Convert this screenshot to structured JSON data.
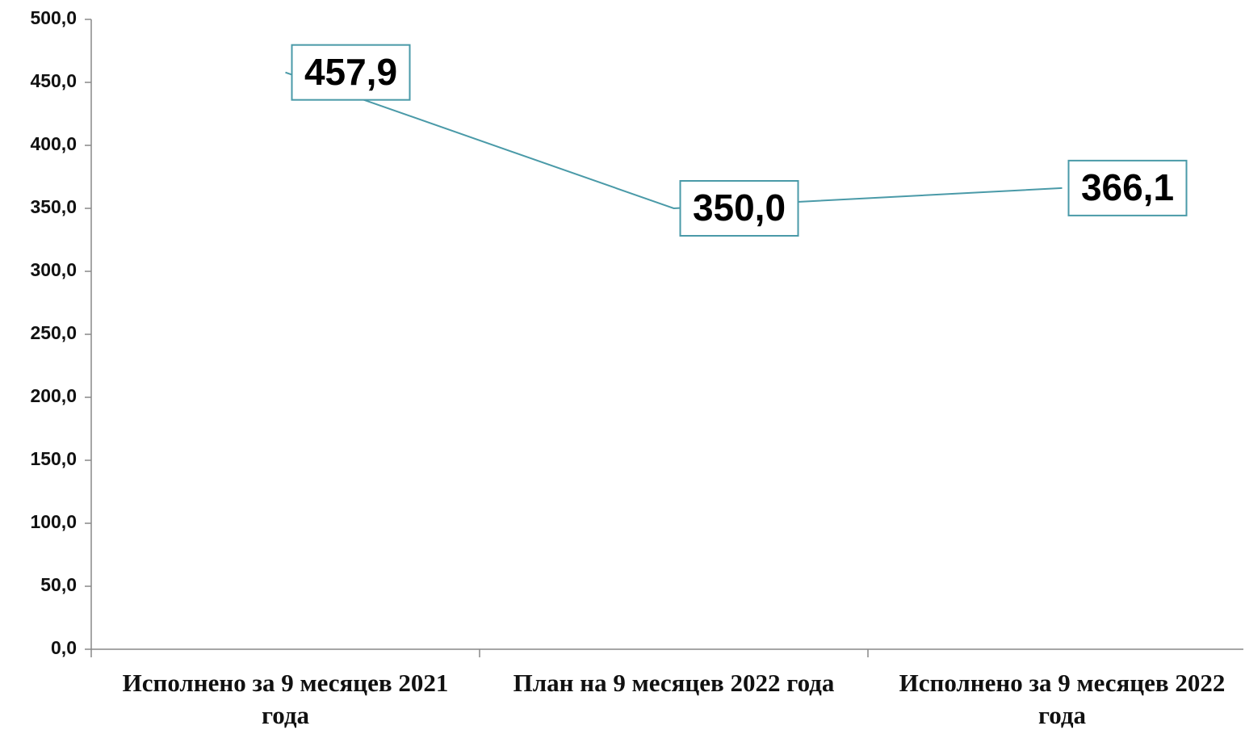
{
  "chart_data": {
    "type": "line",
    "categories": [
      "Исполнено за 9 месяцев 2021 года",
      "План на 9 месяцев 2022 года",
      "Исполнено за 9 месяцев 2022 года"
    ],
    "values": [
      457.9,
      350.0,
      366.1
    ],
    "value_labels": [
      "457,9",
      "350,0",
      "366,1"
    ],
    "color": "#4a9aa8",
    "ylim": [
      0,
      500
    ],
    "yticks": [
      {
        "value": 0,
        "label": "0,0"
      },
      {
        "value": 50,
        "label": "50,0"
      },
      {
        "value": 100,
        "label": "100,0"
      },
      {
        "value": 150,
        "label": "150,0"
      },
      {
        "value": 200,
        "label": "200,0"
      },
      {
        "value": 250,
        "label": "250,0"
      },
      {
        "value": 300,
        "label": "300,0"
      },
      {
        "value": 350,
        "label": "350,0"
      },
      {
        "value": 400,
        "label": "400,0"
      },
      {
        "value": 450,
        "label": "450,0"
      },
      {
        "value": 500,
        "label": "500,0"
      }
    ]
  }
}
